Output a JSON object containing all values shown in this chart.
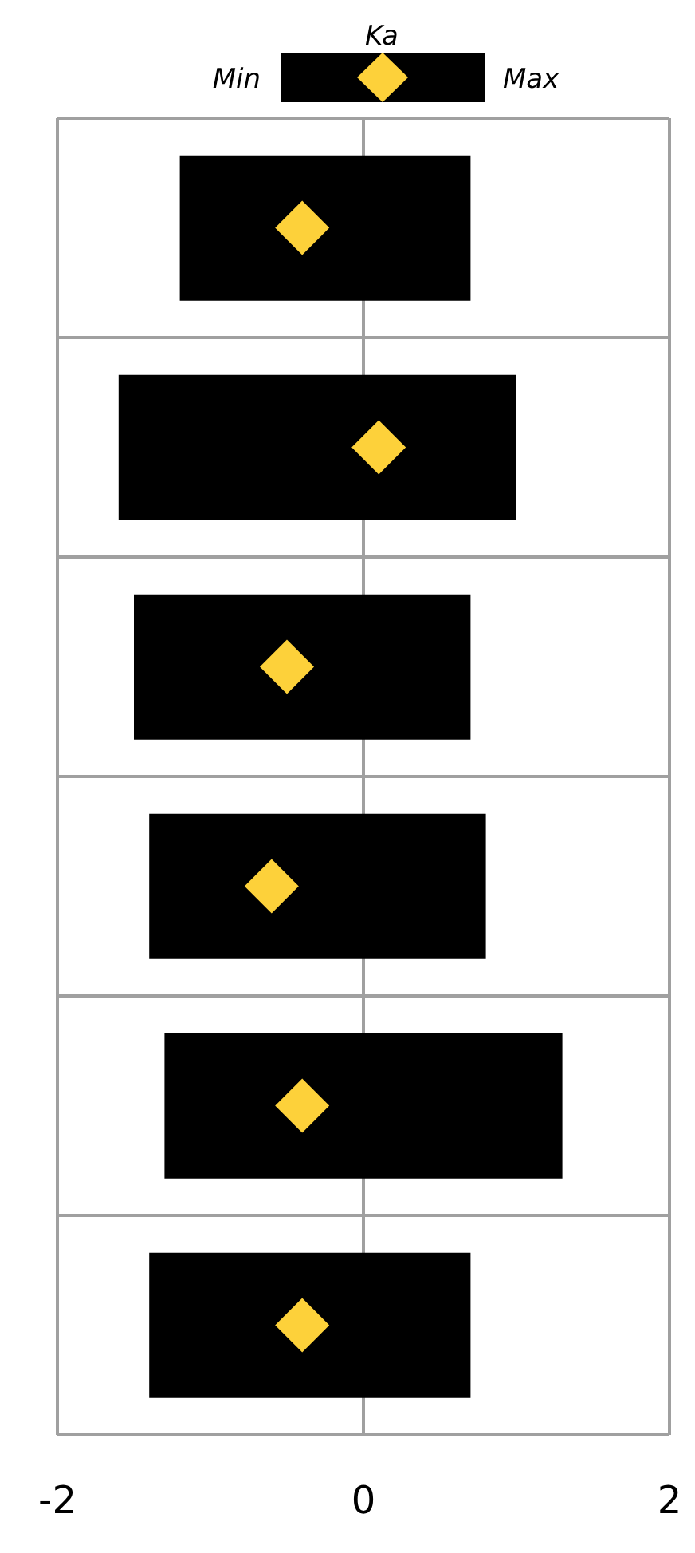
{
  "chart_data": {
    "type": "bar",
    "orientation": "horizontal",
    "categories": [
      null,
      null,
      null,
      null,
      null,
      null
    ],
    "series": [
      {
        "color": "#000000",
        "base": [
          -1.2,
          -1.6,
          -1.5,
          -1.4,
          -1.3,
          -1.4
        ],
        "values": [
          1.9,
          2.6,
          2.2,
          2.2,
          2.6,
          2.1
        ]
      },
      {
        "type": "scatter",
        "name": "Ka",
        "color": "#fdd13a",
        "marker": "diamond",
        "values": [
          -0.4,
          0.1,
          -0.5,
          -0.6,
          -0.4,
          -0.4
        ]
      }
    ],
    "annotations": [
      "Min",
      "Max"
    ],
    "xlim": [
      -2,
      2
    ],
    "xticks": [
      -2,
      0,
      2
    ],
    "tick_labels": "x",
    "grid": true,
    "legend": "top"
  }
}
